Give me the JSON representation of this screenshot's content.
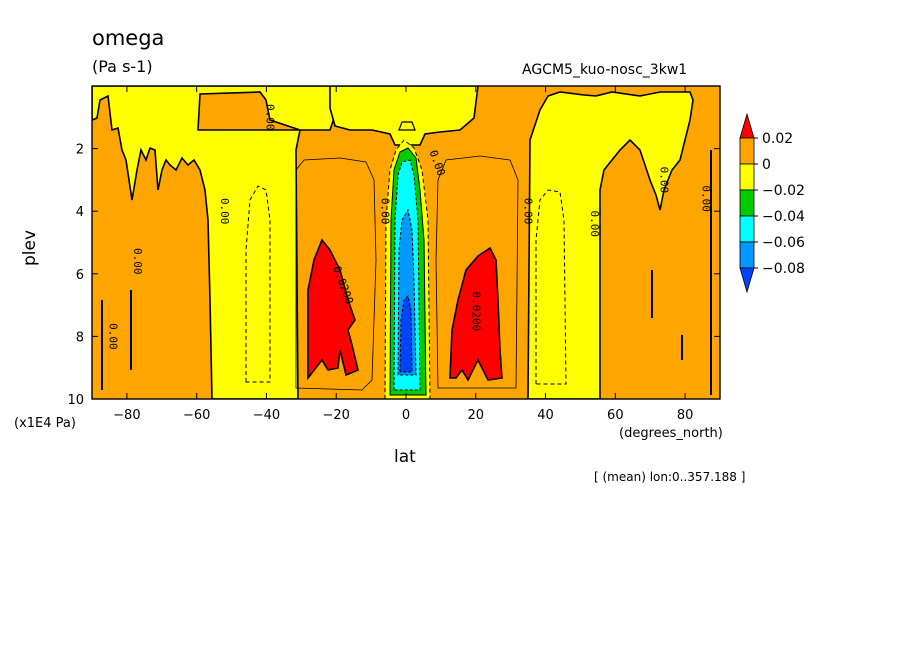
{
  "chart_data": {
    "type": "heatmap",
    "title": "omega",
    "units": "(Pa s-1)",
    "dataset_label": "AGCM5_kuo-nosc_3kw1",
    "xlabel": "lat",
    "x_units": "(degrees_north)",
    "ylabel": "plev",
    "y_units": "(x1E4 Pa)",
    "subtitle_note": "[ (mean) lon:0..357.188 ]",
    "xlim": [
      -90,
      90
    ],
    "ylim": [
      10,
      0
    ],
    "y_inverted": true,
    "x_ticks": [
      -80,
      -60,
      -40,
      -20,
      0,
      20,
      40,
      60,
      80
    ],
    "x_tick_labels": [
      "−80",
      "−60",
      "−40",
      "−20",
      "0",
      "20",
      "40",
      "60",
      "80"
    ],
    "y_ticks": [
      2,
      4,
      6,
      8,
      10
    ],
    "y_tick_labels": [
      "2",
      "4",
      "6",
      "8",
      "10"
    ],
    "colorbar": {
      "levels": [
        0.02,
        0,
        -0.02,
        -0.04,
        -0.06,
        -0.08
      ],
      "labels": [
        "0.02",
        "0",
        "−0.02",
        "−0.04",
        "−0.06",
        "−0.08"
      ],
      "colors": [
        "#ff0000",
        "#ffa500",
        "#ffff00",
        "#00cc00",
        "#00ffff",
        "#0099ff",
        "#0044ff"
      ]
    },
    "contour_labels": [
      {
        "text": "0.00",
        "lat": -40,
        "plev": 1.0,
        "rot": 90
      },
      {
        "text": "0.00",
        "lat": -53,
        "plev": 4.0,
        "rot": 90
      },
      {
        "text": "0.00",
        "lat": -78,
        "plev": 5.6,
        "rot": 90
      },
      {
        "text": "0.00",
        "lat": -85,
        "plev": 8.0,
        "rot": 90
      },
      {
        "text": "0.0200",
        "lat": -19,
        "plev": 6.4,
        "rot": 70
      },
      {
        "text": "0.00",
        "lat": -7,
        "plev": 4.0,
        "rot": 90
      },
      {
        "text": "0.00",
        "lat": 8,
        "plev": 2.5,
        "rot": 70
      },
      {
        "text": "0.0200",
        "lat": 19,
        "plev": 7.2,
        "rot": 90
      },
      {
        "text": "0.00",
        "lat": 34,
        "plev": 4.0,
        "rot": 90
      },
      {
        "text": "0.00",
        "lat": 53,
        "plev": 4.4,
        "rot": 90
      },
      {
        "text": "0.00",
        "lat": 73,
        "plev": 3.0,
        "rot": 90
      },
      {
        "text": "0.00",
        "lat": 85,
        "plev": 3.6,
        "rot": 90
      }
    ]
  }
}
